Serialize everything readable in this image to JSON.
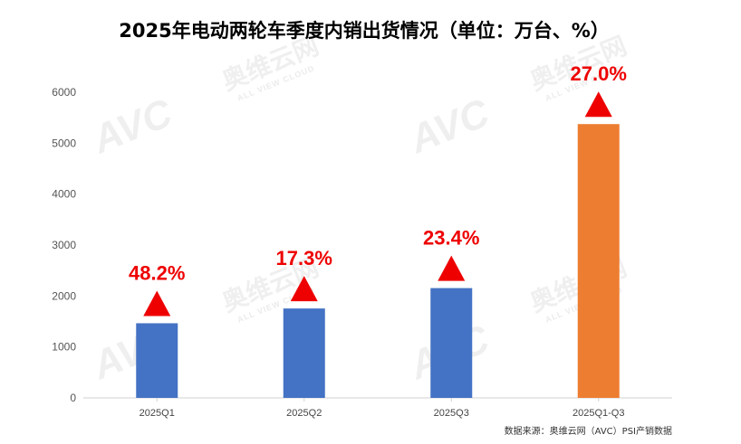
{
  "chart_data": {
    "type": "bar",
    "title": "2025年电动两轮车季度内销出货情况（单位：万台、%）",
    "categories": [
      "2025Q1",
      "2025Q2",
      "2025Q3",
      "2025Q1-Q3"
    ],
    "values": [
      1465,
      1755,
      2155,
      5375
    ],
    "growth_labels": [
      "48.2%",
      "17.3%",
      "23.4%",
      "27.0%"
    ],
    "growth_direction": "up",
    "bar_colors": [
      "#4472c4",
      "#4472c4",
      "#4472c4",
      "#ed7d31"
    ],
    "ylim": [
      0,
      6000
    ],
    "yticks": [
      0,
      1000,
      2000,
      3000,
      4000,
      5000,
      6000
    ],
    "xlabel": "",
    "ylabel": "",
    "grid": false,
    "legend": "none"
  },
  "source": "数据来源：奥维云网（AVC）PSI产销数据",
  "watermark": {
    "brand": "AVC",
    "cn": "奥维云网",
    "en": "ALL VIEW CLOUD"
  },
  "colors": {
    "arrow": "#ee0000",
    "label": "#ee0000"
  }
}
